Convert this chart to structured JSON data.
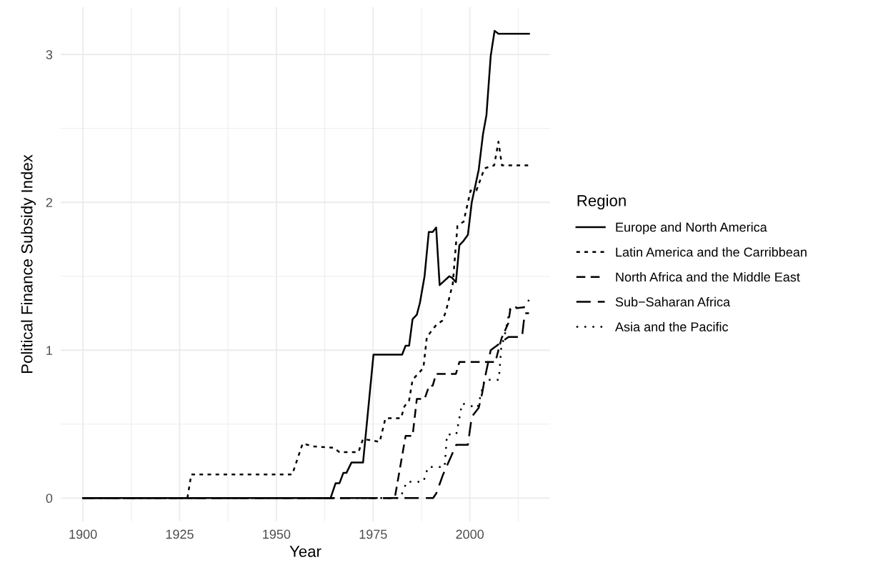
{
  "chart_data": {
    "type": "line",
    "xlabel": "Year",
    "ylabel": "Political Finance Subsidy Index",
    "legend_title": "Region",
    "legend": "right",
    "grid": true,
    "xlim": [
      1894.25,
      2020.75
    ],
    "ylim": [
      -0.158,
      3.32
    ],
    "xticks": [
      1900,
      {
        "value": 1912.5,
        "label": null
      },
      1925,
      {
        "value": 1937.5,
        "label": null
      },
      1950,
      {
        "value": 1962.5,
        "label": null
      },
      1975,
      {
        "value": 1987.5,
        "label": null
      },
      2000,
      {
        "value": 2012.5,
        "label": null
      }
    ],
    "yticks": [
      0,
      {
        "value": 0.5,
        "label": null
      },
      1,
      {
        "value": 1.5,
        "label": null
      },
      2,
      {
        "value": 2.5,
        "label": null
      },
      3
    ],
    "series": [
      {
        "name": "Europe and North America",
        "color": "#000000",
        "line_style": "solid",
        "x": [
          1900,
          1964,
          1965.3,
          1966.3,
          1967.3,
          1968.1,
          1969.4,
          1972.4,
          1975.1,
          1982.5,
          1983.4,
          1984.3,
          1985.2,
          1986.3,
          1987.1,
          1988.3,
          1989.4,
          1990.4,
          1991.3,
          1992.2,
          1994.7,
          1995.4,
          1996.4,
          1997.3,
          1998.4,
          1999.5,
          2000.5,
          2002.3,
          2003.4,
          2004.3,
          2005.4,
          2006.4,
          2007.4,
          2015.3
        ],
        "values": [
          0,
          0,
          0.1,
          0.1,
          0.17,
          0.17,
          0.24,
          0.24,
          0.97,
          0.97,
          1.03,
          1.03,
          1.21,
          1.24,
          1.32,
          1.5,
          1.8,
          1.8,
          1.83,
          1.44,
          1.5,
          1.49,
          1.46,
          1.71,
          1.74,
          1.78,
          2.0,
          2.22,
          2.46,
          2.59,
          2.99,
          3.16,
          3.14,
          3.14
        ]
      },
      {
        "name": "Latin America and the Carribbean",
        "color": "#000000",
        "line_style": "dotted",
        "x": [
          1900,
          1927,
          1928,
          1954.1,
          1956.8,
          1959.3,
          1964.8,
          1966.3,
          1971.2,
          1972.4,
          1976.7,
          1978.2,
          1982.2,
          1983.1,
          1984.3,
          1985.2,
          1988,
          1988.9,
          1991.3,
          1992.9,
          1993.8,
          1995.6,
          1996.8,
          1998.4,
          2000.2,
          2001.7,
          2003.8,
          2006.3,
          2007.4,
          2008.3,
          2015.3
        ],
        "values": [
          0,
          0,
          0.16,
          0.16,
          0.37,
          0.35,
          0.34,
          0.31,
          0.31,
          0.4,
          0.38,
          0.54,
          0.54,
          0.62,
          0.66,
          0.8,
          0.88,
          1.09,
          1.17,
          1.2,
          1.26,
          1.45,
          1.84,
          1.87,
          2.08,
          2.08,
          2.23,
          2.25,
          2.41,
          2.25,
          2.25
        ]
      },
      {
        "name": "North Africa and the Middle East",
        "color": "#000000",
        "line_style": "dashed",
        "x": [
          1900,
          1980.6,
          1983.4,
          1985.2,
          1986.3,
          1988.3,
          1989.5,
          1990.4,
          1991.3,
          1996.4,
          1997.3,
          2006.6,
          2008.2,
          2009.9,
          2010.5,
          2013.9
        ],
        "values": [
          0,
          0,
          0.42,
          0.42,
          0.67,
          0.67,
          0.76,
          0.76,
          0.84,
          0.84,
          0.92,
          0.92,
          1.08,
          1.18,
          1.28,
          1.29
        ]
      },
      {
        "name": "Sub−Saharan Africa",
        "color": "#000000",
        "line_style": "dashed",
        "x": [
          1900,
          1990.5,
          1991.3,
          1993.1,
          1996.5,
          1999.5,
          2000.5,
          2002.3,
          2003.2,
          2003.8,
          2005.4,
          2010,
          2013.5,
          2014.2,
          2015.3
        ],
        "values": [
          0,
          0,
          0.03,
          0.16,
          0.36,
          0.36,
          0.55,
          0.61,
          0.71,
          0.8,
          1.0,
          1.09,
          1.09,
          1.25,
          1.25
        ]
      },
      {
        "name": "Asia and the Pacific",
        "color": "#000000",
        "line_style": "dotted",
        "x": [
          1900,
          1982,
          1983.7,
          1988,
          1989.2,
          1993.5,
          1994.1,
          1996.5,
          1998,
          2002,
          2003.8,
          2007.5,
          2008.1,
          2009,
          2010.5,
          2014,
          2015.3
        ],
        "values": [
          0,
          0,
          0.11,
          0.11,
          0.21,
          0.21,
          0.43,
          0.43,
          0.64,
          0.61,
          0.8,
          0.8,
          1.01,
          1.1,
          1.29,
          1.29,
          1.34
        ]
      }
    ]
  }
}
